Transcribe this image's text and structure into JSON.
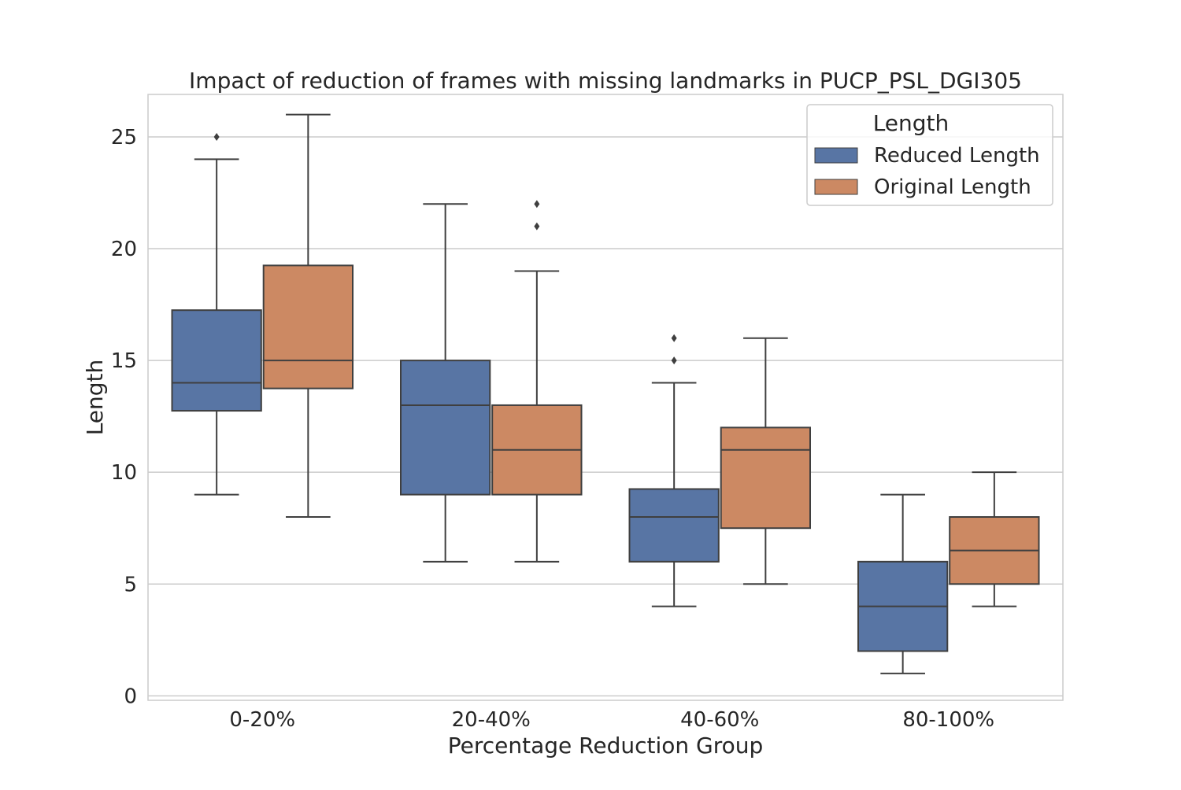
{
  "chart_data": {
    "type": "box",
    "title": "Impact of reduction of frames with missing landmarks in PUCP_PSL_DGI305",
    "xlabel": "Percentage Reduction Group",
    "ylabel": "Length",
    "ylim": [
      -0.2,
      26.9
    ],
    "yticks": [
      0,
      5,
      10,
      15,
      20,
      25
    ],
    "grid": true,
    "categories": [
      "0-20%",
      "20-40%",
      "40-60%",
      "80-100%"
    ],
    "legend": {
      "title": "Length",
      "position": "top-right"
    },
    "series": [
      {
        "name": "Reduced Length",
        "color": "#5875a4",
        "boxes": [
          {
            "whisker_low": 9,
            "q1": 12.75,
            "median": 14,
            "q3": 17.25,
            "whisker_high": 24,
            "outliers": [
              25
            ]
          },
          {
            "whisker_low": 6,
            "q1": 9,
            "median": 13,
            "q3": 15,
            "whisker_high": 22,
            "outliers": []
          },
          {
            "whisker_low": 4,
            "q1": 6,
            "median": 8,
            "q3": 9.25,
            "whisker_high": 14,
            "outliers": [
              15,
              16
            ]
          },
          {
            "whisker_low": 1,
            "q1": 2,
            "median": 4,
            "q3": 6,
            "whisker_high": 9,
            "outliers": []
          }
        ]
      },
      {
        "name": "Original Length",
        "color": "#cc8963",
        "boxes": [
          {
            "whisker_low": 8,
            "q1": 13.75,
            "median": 15,
            "q3": 19.25,
            "whisker_high": 26,
            "outliers": []
          },
          {
            "whisker_low": 6,
            "q1": 9,
            "median": 11,
            "q3": 13,
            "whisker_high": 19,
            "outliers": [
              21,
              22
            ]
          },
          {
            "whisker_low": 5,
            "q1": 7.5,
            "median": 11,
            "q3": 12,
            "whisker_high": 16,
            "outliers": []
          },
          {
            "whisker_low": 4,
            "q1": 5,
            "median": 6.5,
            "q3": 8,
            "whisker_high": 10,
            "outliers": []
          }
        ]
      }
    ]
  }
}
